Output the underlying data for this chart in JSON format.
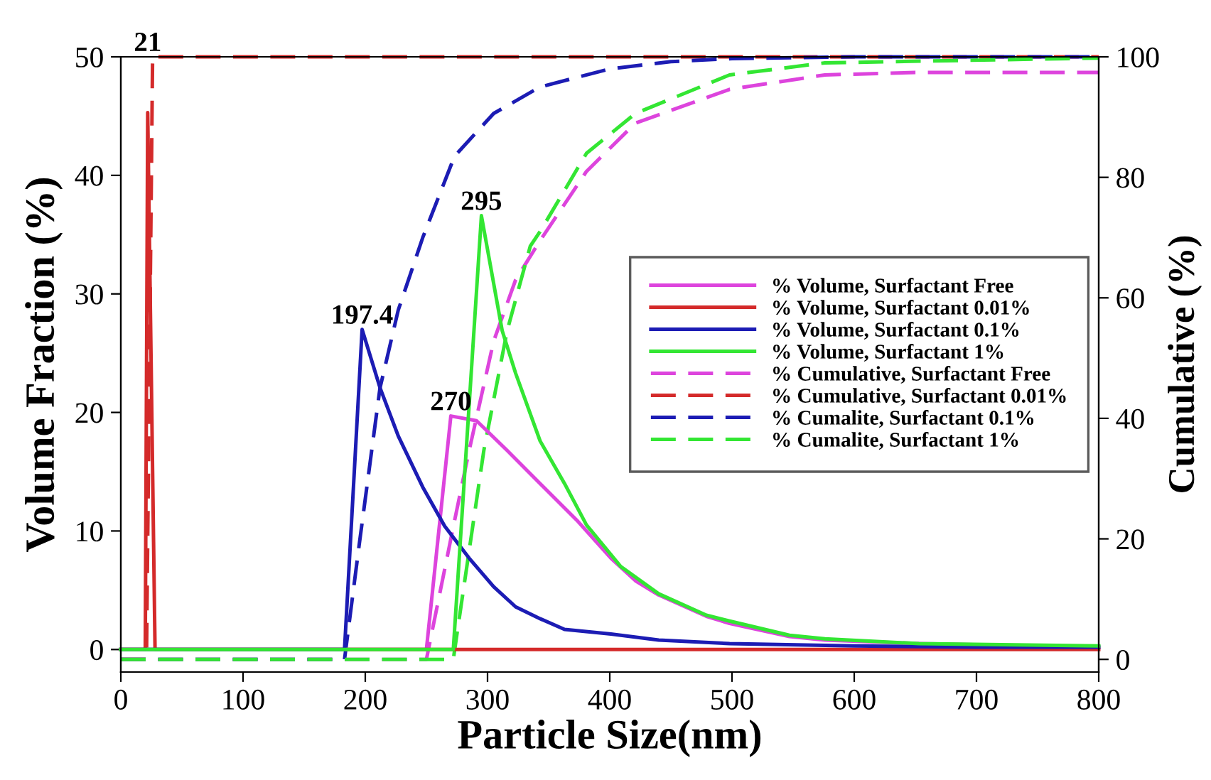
{
  "chart_data": {
    "type": "line",
    "xlabel": "Particle Size(nm)",
    "ylabel": "Volume Fraction (%)",
    "y2label": "Cumulative (%)",
    "xlim": [
      0,
      800
    ],
    "xticks": [
      0,
      100,
      200,
      300,
      400,
      500,
      600,
      700,
      800
    ],
    "ylim": [
      -1.9,
      50
    ],
    "yticks": [
      0,
      10,
      20,
      30,
      40,
      50
    ],
    "y2lim": [
      -2.1,
      100
    ],
    "y2ticks": [
      0,
      20,
      40,
      60,
      80,
      100
    ],
    "grid": false,
    "legend": "right",
    "marker": "none",
    "series": [
      {
        "name": "% Volume, Surfactant Free",
        "color": "#dd44dd",
        "line_style": "solid",
        "x": [
          0,
          250,
          270,
          291,
          316,
          343,
          374,
          401,
          421,
          440,
          479,
          498,
          547,
          576,
          653,
          800
        ],
        "values": [
          0,
          0,
          19.7,
          19.3,
          16.8,
          14.0,
          10.8,
          7.7,
          5.8,
          4.6,
          2.8,
          2.2,
          1.1,
          0.8,
          0.5,
          0.2
        ]
      },
      {
        "name": "% Volume, Surfactant 0.01%",
        "color": "#d42a2a",
        "line_style": "solid",
        "x": [
          0,
          20,
          22,
          28,
          800
        ],
        "values": [
          0,
          0,
          45.3,
          0,
          0
        ]
      },
      {
        "name": "% Volume, Surfactant 0.1%",
        "color": "#1c1cb4",
        "line_style": "solid",
        "x": [
          0,
          183,
          197.4,
          212,
          227,
          247,
          265,
          285,
          305,
          323,
          343,
          363,
          401,
          440,
          498,
          600,
          700,
          800
        ],
        "values": [
          0,
          0,
          27.0,
          22.1,
          18.0,
          13.7,
          10.4,
          7.7,
          5.3,
          3.6,
          2.6,
          1.7,
          1.3,
          0.8,
          0.5,
          0.3,
          0.2,
          0.2
        ]
      },
      {
        "name": "% Volume, Surfactant 1%",
        "color": "#33e633",
        "line_style": "solid",
        "x": [
          0,
          272,
          295,
          312,
          323,
          343,
          363,
          381,
          409,
          440,
          479,
          498,
          547,
          576,
          653,
          800
        ],
        "values": [
          0,
          0,
          36.6,
          26.9,
          23.3,
          17.6,
          14.0,
          10.5,
          7.0,
          4.7,
          2.9,
          2.4,
          1.2,
          0.9,
          0.5,
          0.3
        ]
      },
      {
        "name": "% Cumulative, Surfactant Free",
        "color": "#dd44dd",
        "line_style": "dashed",
        "axis": "y2",
        "x": [
          0,
          250,
          273,
          285,
          305,
          323,
          343,
          381,
          421,
          498,
          576,
          650,
          800
        ],
        "values": [
          0,
          0,
          23,
          34.7,
          52.8,
          63,
          69.5,
          81,
          89,
          94.6,
          97,
          97.4,
          97.4
        ]
      },
      {
        "name": "% Cumulative, Surfactant 0.01%",
        "color": "#d42a2a",
        "line_style": "dashed",
        "axis": "y2",
        "x": [
          0,
          21,
          26,
          800
        ],
        "values": [
          0,
          0,
          100,
          100
        ]
      },
      {
        "name": "% Cumalite, Surfactant 0.1%",
        "color": "#1c1cb4",
        "line_style": "dashed",
        "axis": "y2",
        "x": [
          0,
          183,
          195,
          212,
          227,
          247,
          273,
          305,
          343,
          400,
          450,
          500,
          600,
          800
        ],
        "values": [
          0,
          0,
          19,
          45,
          58,
          70,
          83.5,
          90.6,
          95,
          98,
          99.2,
          99.7,
          100,
          100
        ]
      },
      {
        "name": "% Cumalite, Surfactant 1%",
        "color": "#33e633",
        "line_style": "dashed",
        "axis": "y2",
        "x": [
          0,
          272,
          277,
          297,
          316,
          335,
          343,
          381,
          421,
          498,
          576,
          800
        ],
        "values": [
          0,
          0,
          7,
          34.7,
          54.5,
          68.6,
          71,
          84,
          90.6,
          97,
          99,
          99.8
        ]
      }
    ],
    "annotations": [
      {
        "text": "21",
        "x": 22,
        "y": 45.3
      },
      {
        "text": "197.4",
        "x": 197.4,
        "y": 27.0
      },
      {
        "text": "295",
        "x": 295,
        "y": 36.6
      },
      {
        "text": "270",
        "x": 270,
        "y": 19.7
      }
    ]
  }
}
